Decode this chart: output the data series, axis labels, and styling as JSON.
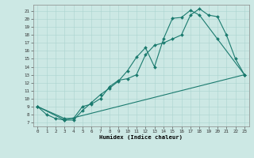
{
  "xlabel": "Humidex (Indice chaleur)",
  "bg_color": "#cce8e4",
  "grid_color": "#aad4cf",
  "line_color": "#1a7a6e",
  "xlim": [
    -0.5,
    23.5
  ],
  "ylim": [
    6.5,
    21.8
  ],
  "xticks": [
    0,
    1,
    2,
    3,
    4,
    5,
    6,
    7,
    8,
    9,
    10,
    11,
    12,
    13,
    14,
    15,
    16,
    17,
    18,
    19,
    20,
    21,
    22,
    23
  ],
  "yticks": [
    7,
    8,
    9,
    10,
    11,
    12,
    13,
    14,
    15,
    16,
    17,
    18,
    19,
    20,
    21
  ],
  "line1_x": [
    0,
    1,
    2,
    3,
    4,
    5,
    6,
    7,
    8,
    9,
    10,
    11,
    12,
    13,
    14,
    15,
    16,
    17,
    18,
    20,
    23
  ],
  "line1_y": [
    9.0,
    8.0,
    7.5,
    7.3,
    7.3,
    8.5,
    9.5,
    10.5,
    11.3,
    12.2,
    13.5,
    15.2,
    16.4,
    14.0,
    17.5,
    20.1,
    20.2,
    21.1,
    20.5,
    17.5,
    13.0
  ],
  "line2_x": [
    0,
    3,
    4,
    5,
    6,
    7,
    8,
    9,
    10,
    11,
    12,
    13,
    14,
    15,
    16,
    17,
    18,
    19,
    20,
    21,
    22,
    23
  ],
  "line2_y": [
    9.0,
    7.5,
    7.5,
    9.0,
    9.3,
    10.0,
    11.5,
    12.3,
    12.5,
    13.0,
    15.5,
    16.7,
    17.0,
    17.5,
    18.0,
    20.5,
    21.3,
    20.5,
    20.3,
    18.0,
    15.0,
    13.0
  ],
  "line3_x": [
    0,
    3,
    23
  ],
  "line3_y": [
    9.0,
    7.3,
    13.0
  ],
  "marker_size": 2.0,
  "linewidth": 0.8,
  "tick_fontsize": 4.2,
  "xlabel_fontsize": 5.2
}
